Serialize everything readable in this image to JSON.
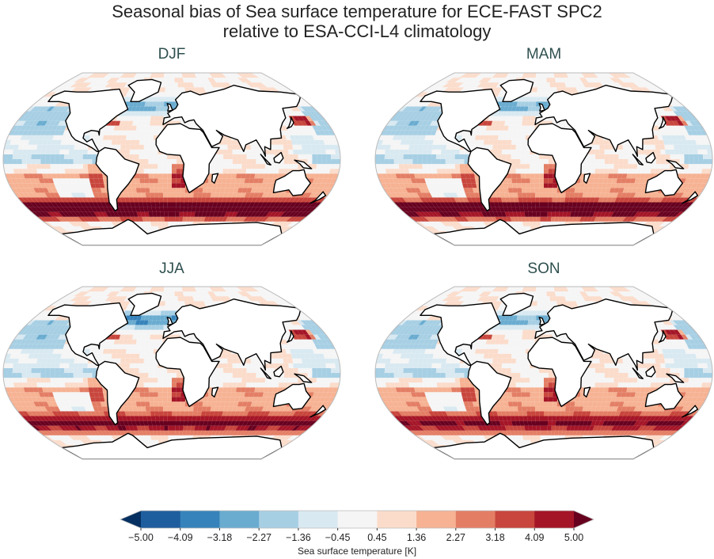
{
  "title_line1": "Seasonal bias of Sea surface temperature for ECE-FAST SPC2",
  "title_line2": "relative to ESA-CCI-L4 climatology",
  "panels": [
    {
      "label": "DJF"
    },
    {
      "label": "MAM"
    },
    {
      "label": "JJA"
    },
    {
      "label": "SON"
    }
  ],
  "colorbar": {
    "label": "Sea surface temperature [K]",
    "ticks": [
      "−5.00",
      "−4.09",
      "−3.18",
      "−2.27",
      "−1.36",
      "−0.45",
      "0.45",
      "1.36",
      "2.27",
      "3.18",
      "4.09",
      "5.00"
    ],
    "range": [
      -5,
      5
    ],
    "extend": "both",
    "colors": [
      "#053061",
      "#1f5e9e",
      "#3683bb",
      "#6aacd0",
      "#a7cfe4",
      "#d9e9f1",
      "#f5f5f5",
      "#fbdccb",
      "#f6b293",
      "#e37e65",
      "#c8463d",
      "#a41527",
      "#67001f"
    ]
  }
}
